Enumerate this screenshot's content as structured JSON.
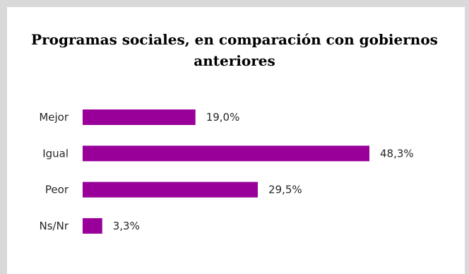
{
  "chart_data": {
    "type": "bar",
    "orientation": "horizontal",
    "title": "Programas sociales, en comparación con gobiernos anteriores",
    "categories": [
      "Mejor",
      "Igual",
      "Peor",
      "Ns/Nr"
    ],
    "values": [
      19.0,
      48.3,
      29.5,
      3.3
    ],
    "value_labels": [
      "19,0%",
      "48,3%",
      "29,5%",
      "3,3%"
    ],
    "unit": "%",
    "xlim": [
      0,
      50
    ],
    "grid": false,
    "legend": "none",
    "bar_color": "#990099"
  }
}
